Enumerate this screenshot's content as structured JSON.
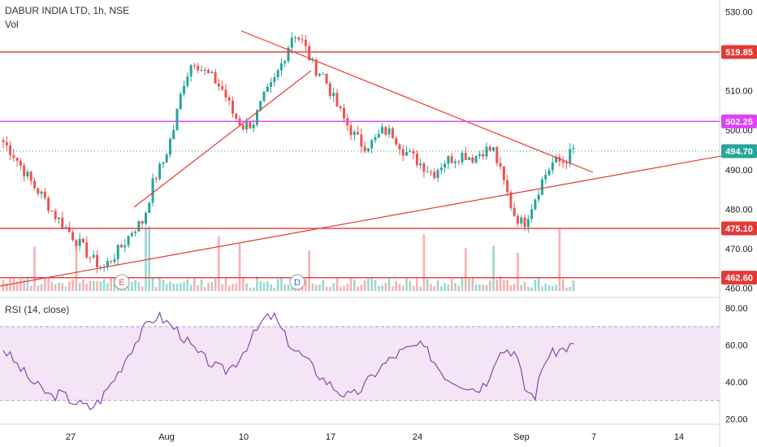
{
  "header": {
    "symbol_line": "DABUR INDIA LTD, 1h, NSE",
    "volume_label": "Vol",
    "rsi_label": "RSI (14, close)"
  },
  "colors": {
    "up": "#26a69a",
    "down": "#ef5350",
    "hline": "#e53935",
    "magenta": "#e040fb",
    "rsi_line": "#8e44ad",
    "rsi_band": "#f3e5f5",
    "current": "#26a69a"
  },
  "chart_data": [
    {
      "type": "candlestick",
      "title": "DABUR INDIA LTD, 1h, NSE",
      "ylim": [
        458,
        532
      ],
      "y_ticks": [
        460,
        470,
        480,
        490,
        500,
        510,
        520,
        530
      ],
      "y_tick_labels": [
        "460.00",
        "470.00",
        "480.00",
        "490.00",
        "500.00",
        "510.00",
        "520.00",
        "530.00"
      ],
      "x_ticks": [
        "27",
        "Aug",
        "10",
        "17",
        "24",
        "Sep",
        "7",
        "14"
      ],
      "close_keypoints": [
        497,
        494,
        490,
        486,
        483,
        479,
        476,
        473,
        470,
        467,
        465,
        468,
        471,
        475,
        477,
        487,
        492,
        500,
        512,
        518,
        515,
        513,
        510,
        504,
        501,
        502,
        508,
        512,
        518,
        525,
        522,
        516,
        514,
        508,
        503,
        499,
        496,
        497,
        500,
        499,
        495,
        493,
        491,
        489,
        492,
        493,
        494,
        493,
        495,
        495,
        487,
        479,
        476,
        482,
        488,
        492,
        492,
        495
      ],
      "price_levels": [
        {
          "value": 519.85,
          "label": "519.85",
          "style": "red"
        },
        {
          "value": 502.25,
          "label": "502.25",
          "style": "magenta"
        },
        {
          "value": 494.7,
          "label": "494.70",
          "style": "current"
        },
        {
          "value": 475.1,
          "label": "475.10",
          "style": "red"
        },
        {
          "value": 462.6,
          "label": "462.60",
          "style": "red"
        }
      ],
      "event_markers": [
        "E",
        "D"
      ]
    },
    {
      "type": "line",
      "title": "RSI (14, close)",
      "ylim": [
        18,
        84
      ],
      "y_ticks": [
        20,
        40,
        60,
        80
      ],
      "y_tick_labels": [
        "20.00",
        "40.00",
        "60.00",
        "80.00"
      ],
      "band": [
        30,
        70
      ],
      "rsi_keypoints": [
        58,
        52,
        46,
        40,
        36,
        32,
        34,
        30,
        28,
        26,
        30,
        38,
        46,
        56,
        64,
        72,
        76,
        72,
        68,
        62,
        56,
        52,
        48,
        46,
        50,
        58,
        66,
        74,
        76,
        66,
        58,
        54,
        48,
        42,
        38,
        34,
        32,
        36,
        42,
        48,
        52,
        56,
        58,
        60,
        56,
        48,
        42,
        40,
        38,
        36,
        40,
        54,
        58,
        56,
        36,
        32,
        52,
        56,
        58,
        60
      ]
    }
  ]
}
